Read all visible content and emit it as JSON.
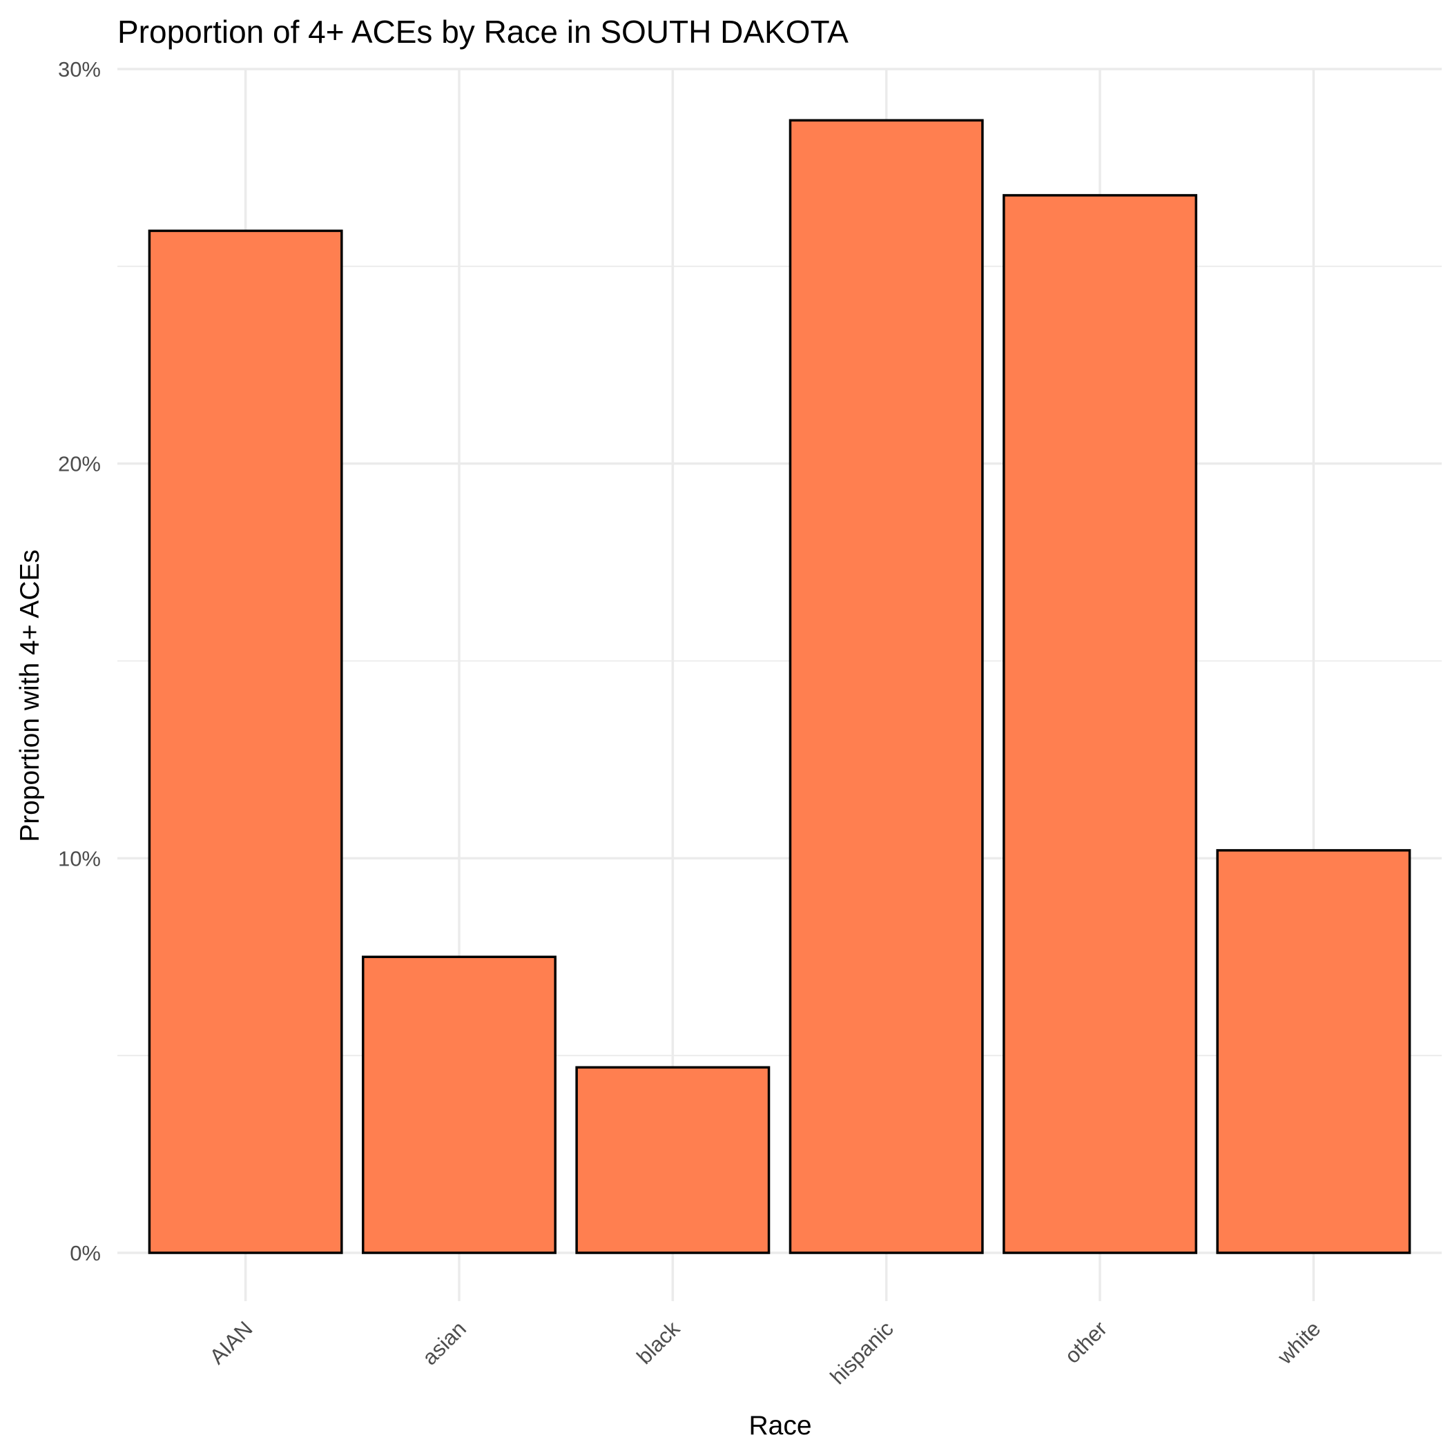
{
  "chart_data": {
    "type": "bar",
    "title": "Proportion of 4+ ACEs by Race in SOUTH DAKOTA",
    "xlabel": "Race",
    "ylabel": "Proportion with 4+ ACEs",
    "categories": [
      "AIAN",
      "asian",
      "black",
      "hispanic",
      "other",
      "white"
    ],
    "values": [
      0.259,
      0.075,
      0.047,
      0.287,
      0.268,
      0.102
    ],
    "ylim": [
      0,
      0.3
    ],
    "yticks": [
      0,
      0.1,
      0.2,
      0.3
    ],
    "ytick_labels": [
      "0%",
      "10%",
      "20%",
      "30%"
    ],
    "grid": true,
    "bar_fill": "#FF7F50",
    "bar_outline": "#000000",
    "legend": "none"
  }
}
